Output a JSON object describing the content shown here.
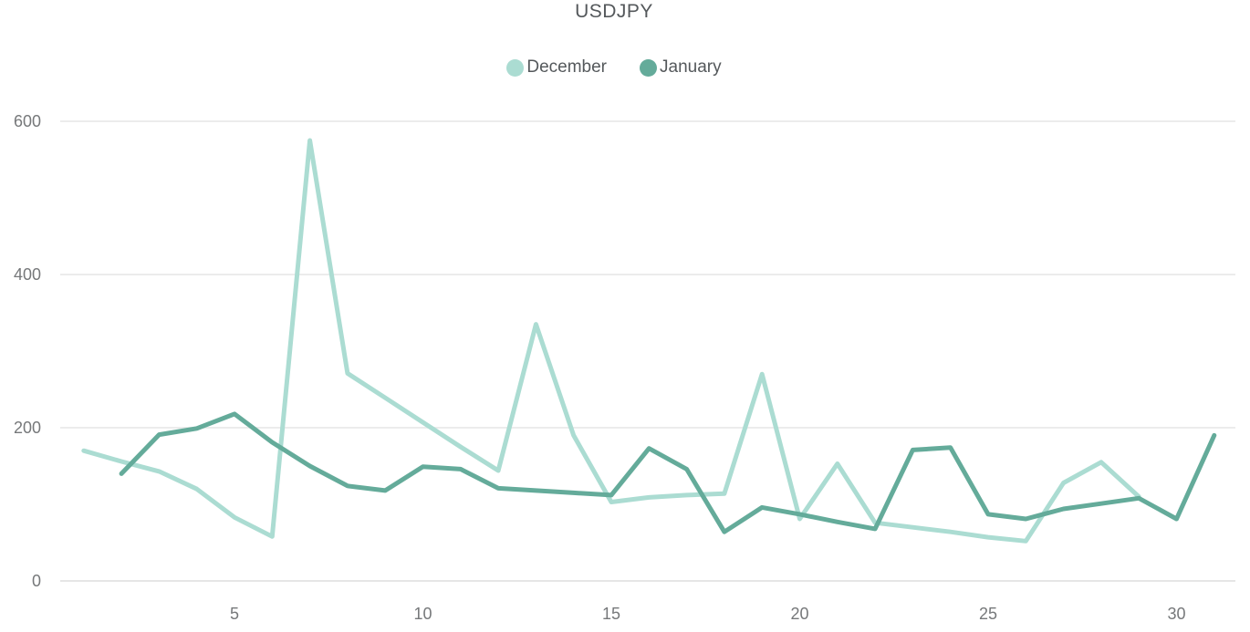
{
  "title": "USDJPY",
  "chart_data": {
    "type": "line",
    "title": "USDJPY",
    "xlabel": "",
    "ylabel": "",
    "x_range": [
      1,
      31
    ],
    "x_ticks": [
      5,
      10,
      15,
      20,
      25,
      30
    ],
    "y_ticks": [
      0,
      200,
      400,
      600
    ],
    "ylim": [
      0,
      600
    ],
    "grid": "horizontal",
    "legend_position": "top-center",
    "background_color": "#ffffff",
    "gridline_color": "#ececec",
    "axisline_color": "#e6e6e6",
    "tick_label_color": "#76787a",
    "title_color": "#54585b",
    "series": [
      {
        "name": "December",
        "color": "#abdcd2",
        "start_x": 1,
        "values": [
          170,
          156,
          143,
          120,
          83,
          58,
          575,
          271,
          239,
          207,
          175,
          144,
          335,
          190,
          103,
          109,
          112,
          114,
          270,
          81,
          153,
          76,
          70,
          64,
          57,
          52,
          128,
          155,
          110
        ]
      },
      {
        "name": "January",
        "color": "#64ab9a",
        "start_x": 2,
        "values": [
          140,
          191,
          199,
          218,
          181,
          150,
          124,
          118,
          149,
          146,
          121,
          118,
          115,
          112,
          173,
          146,
          64,
          96,
          87,
          77,
          68,
          171,
          174,
          87,
          81,
          94,
          101,
          108,
          81,
          190
        ]
      }
    ]
  }
}
